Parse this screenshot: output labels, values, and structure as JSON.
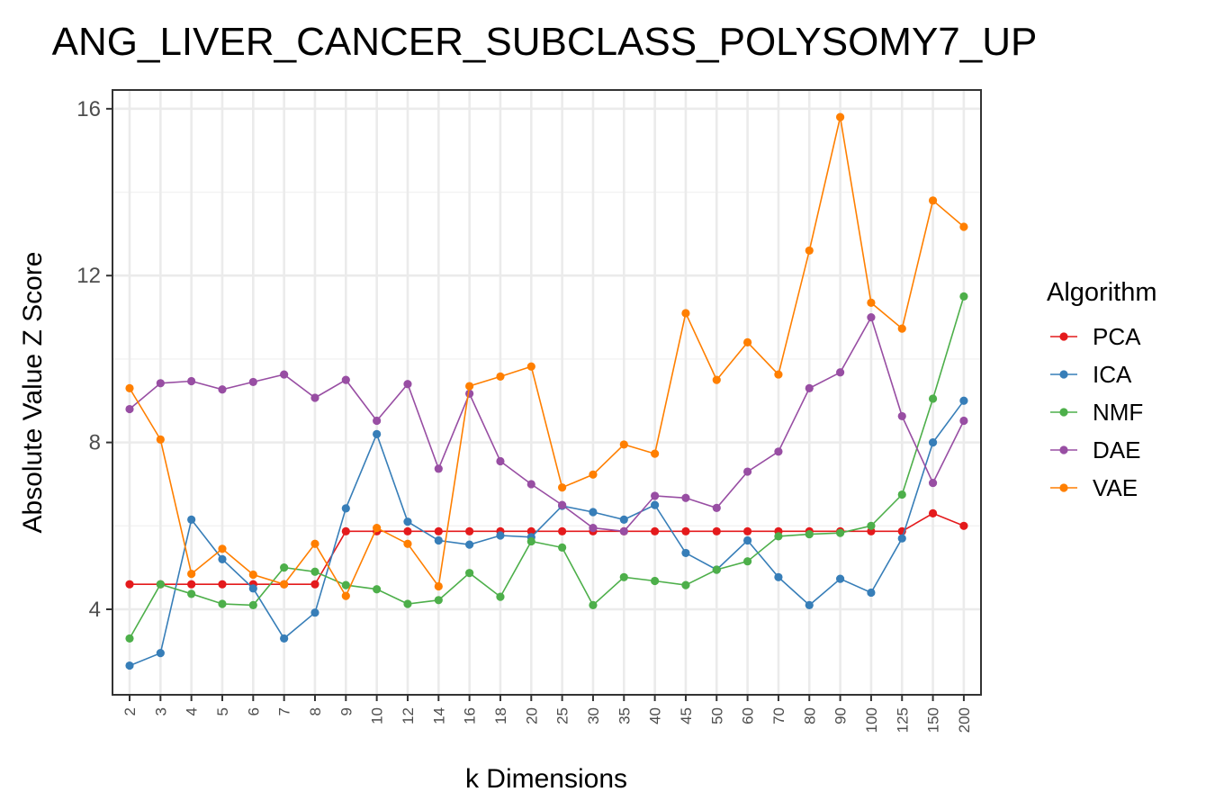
{
  "chart_data": {
    "type": "line",
    "title": "ANG_LIVER_CANCER_SUBCLASS_POLYSOMY7_UP",
    "xlabel": "k Dimensions",
    "ylabel": "Absolute Value Z Score",
    "categories": [
      "2",
      "3",
      "4",
      "5",
      "6",
      "7",
      "8",
      "9",
      "10",
      "12",
      "14",
      "16",
      "18",
      "20",
      "25",
      "30",
      "35",
      "40",
      "45",
      "50",
      "60",
      "70",
      "80",
      "90",
      "100",
      "125",
      "150",
      "200"
    ],
    "ylim": [
      1.95,
      16.45
    ],
    "yticks": [
      4,
      8,
      12,
      16
    ],
    "grid": true,
    "legend": {
      "title": "Algorithm",
      "position": "right"
    },
    "series": [
      {
        "name": "PCA",
        "color": "#e41a1c",
        "values": [
          4.6,
          4.6,
          4.6,
          4.6,
          4.6,
          4.6,
          4.6,
          5.87,
          5.87,
          5.87,
          5.87,
          5.87,
          5.87,
          5.87,
          5.87,
          5.87,
          5.87,
          5.87,
          5.87,
          5.87,
          5.87,
          5.87,
          5.87,
          5.87,
          5.87,
          5.87,
          6.3,
          6.0
        ]
      },
      {
        "name": "ICA",
        "color": "#377eb8",
        "values": [
          2.65,
          2.95,
          6.15,
          5.2,
          4.5,
          3.3,
          3.92,
          6.42,
          8.2,
          6.1,
          5.65,
          5.55,
          5.77,
          5.73,
          6.48,
          6.33,
          6.15,
          6.5,
          5.35,
          4.95,
          5.65,
          4.77,
          4.1,
          4.73,
          4.4,
          5.7,
          8.0,
          9.0
        ]
      },
      {
        "name": "NMF",
        "color": "#4daf4a",
        "values": [
          3.3,
          4.6,
          4.37,
          4.13,
          4.1,
          5.0,
          4.9,
          4.58,
          4.48,
          4.13,
          4.22,
          4.87,
          4.3,
          5.63,
          5.48,
          4.1,
          4.77,
          4.68,
          4.58,
          4.95,
          5.15,
          5.75,
          5.8,
          5.83,
          6.0,
          6.75,
          9.05,
          11.5
        ]
      },
      {
        "name": "DAE",
        "color": "#984ea3",
        "values": [
          8.8,
          9.42,
          9.47,
          9.27,
          9.45,
          9.63,
          9.07,
          9.5,
          8.52,
          9.4,
          7.37,
          9.17,
          7.55,
          7.0,
          6.5,
          5.95,
          5.87,
          6.72,
          6.67,
          6.43,
          7.3,
          7.78,
          9.3,
          9.68,
          11.0,
          8.63,
          7.03,
          8.52
        ]
      },
      {
        "name": "VAE",
        "color": "#ff7f00",
        "values": [
          9.3,
          8.07,
          4.85,
          5.45,
          4.83,
          4.6,
          5.57,
          4.32,
          5.95,
          5.57,
          4.55,
          9.35,
          9.58,
          9.82,
          6.92,
          7.23,
          7.95,
          7.73,
          11.1,
          9.5,
          10.4,
          9.63,
          12.6,
          15.8,
          11.35,
          10.73,
          13.8,
          13.17
        ]
      }
    ]
  }
}
